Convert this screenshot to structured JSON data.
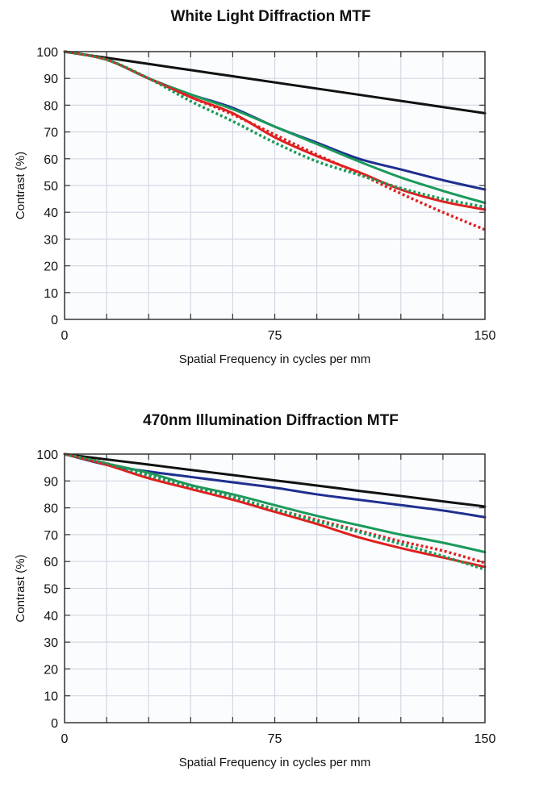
{
  "chart_data": [
    {
      "type": "line",
      "title": "White Light Diffraction MTF",
      "xlabel": "Spatial Frequency in cycles per mm",
      "ylabel": "Contrast (%)",
      "xlim": [
        0,
        150
      ],
      "ylim": [
        0,
        100
      ],
      "xticks": [
        "0",
        "75",
        "150"
      ],
      "yticks": [
        "0",
        "10",
        "20",
        "30",
        "40",
        "50",
        "60",
        "70",
        "80",
        "90",
        "100"
      ],
      "grid": true,
      "x": [
        0,
        15,
        30,
        45,
        60,
        75,
        90,
        105,
        120,
        135,
        150
      ],
      "series": [
        {
          "color": "#111111",
          "style": "solid",
          "values": [
            100,
            97.7,
            95.4,
            93.1,
            90.8,
            88.5,
            86.2,
            83.9,
            81.6,
            79.3,
            77
          ]
        },
        {
          "color": "#1f2f8f",
          "style": "solid",
          "values": [
            100,
            97,
            90,
            84,
            79,
            72,
            66,
            60,
            56,
            52,
            48.5
          ]
        },
        {
          "color": "#1a9a5a",
          "style": "solid",
          "values": [
            100,
            97,
            90,
            84,
            78.5,
            72,
            65.5,
            59,
            53,
            48,
            43.5
          ]
        },
        {
          "color": "#e02020",
          "style": "solid",
          "values": [
            100,
            97,
            90,
            83,
            77,
            68,
            61,
            55,
            48.5,
            44,
            41
          ]
        },
        {
          "color": "#e02020",
          "style": "dotted",
          "values": [
            100,
            97,
            90,
            83,
            76.5,
            69,
            61.5,
            54.5,
            47,
            40,
            33.5
          ]
        },
        {
          "color": "#1a9a5a",
          "style": "dotted",
          "values": [
            100,
            97,
            90,
            81.5,
            74,
            66,
            59,
            54,
            49,
            45,
            42
          ]
        }
      ]
    },
    {
      "type": "line",
      "title": "470nm Illumination Diffraction MTF",
      "xlabel": "Spatial Frequency in cycles per mm",
      "ylabel": "Contrast (%)",
      "xlim": [
        0,
        150
      ],
      "ylim": [
        0,
        100
      ],
      "xticks": [
        "0",
        "75",
        "150"
      ],
      "yticks": [
        "0",
        "10",
        "20",
        "30",
        "40",
        "50",
        "60",
        "70",
        "80",
        "90",
        "100"
      ],
      "grid": true,
      "x": [
        0,
        15,
        30,
        45,
        60,
        75,
        90,
        105,
        120,
        135,
        150
      ],
      "series": [
        {
          "color": "#111111",
          "style": "solid",
          "values": [
            100,
            98,
            96.1,
            94.1,
            92.2,
            90.2,
            88.3,
            86.3,
            84.4,
            82.4,
            80.5
          ]
        },
        {
          "color": "#1f2f8f",
          "style": "solid",
          "values": [
            100,
            96,
            93.5,
            91.5,
            89.5,
            87.5,
            85,
            83,
            81,
            79,
            76.5
          ]
        },
        {
          "color": "#1a9a5a",
          "style": "solid",
          "values": [
            100,
            96.5,
            93,
            88.5,
            85,
            81,
            77,
            73.5,
            70,
            67,
            63.5
          ]
        },
        {
          "color": "#e02020",
          "style": "solid",
          "values": [
            100,
            96,
            91,
            87,
            83,
            78.5,
            74,
            69,
            65,
            61.5,
            58
          ]
        },
        {
          "color": "#e02020",
          "style": "dotted",
          "values": [
            100,
            96.5,
            92,
            88,
            84,
            79.5,
            75.5,
            71.5,
            67.5,
            64,
            59.5
          ]
        },
        {
          "color": "#1a9a5a",
          "style": "dotted",
          "values": [
            100,
            96.5,
            92,
            88,
            84,
            79.5,
            75,
            71,
            66.5,
            62,
            57
          ]
        }
      ]
    }
  ]
}
